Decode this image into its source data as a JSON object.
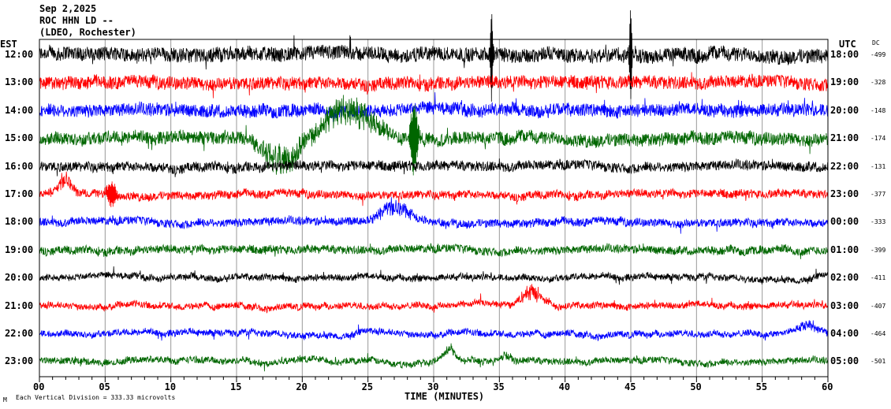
{
  "chart_data": {
    "type": "line",
    "title_lines": [
      "Sep 2,2025",
      "ROC HHN LD --",
      "(LDEO, Rochester)"
    ],
    "left_axis_label": "EST",
    "right_axis_label": "UTC",
    "dc_label": "DC",
    "xlabel": "TIME (MINUTES)",
    "xlim": [
      0,
      60
    ],
    "x_ticks": [
      "00",
      "05",
      "10",
      "15",
      "20",
      "25",
      "30",
      "35",
      "40",
      "45",
      "50",
      "55",
      "60"
    ],
    "footnote": "Each Vertical Division =  333.33 microvolts",
    "footnote_mark": "M",
    "rows": [
      {
        "est": "12:00",
        "utc": "18:00",
        "dc": "-499",
        "color": "#000000",
        "noise": 9
      },
      {
        "est": "13:00",
        "utc": "19:00",
        "dc": "-328",
        "color": "#ff0000",
        "noise": 8
      },
      {
        "est": "14:00",
        "utc": "20:00",
        "dc": "-148",
        "color": "#0000ff",
        "noise": 8
      },
      {
        "est": "15:00",
        "utc": "21:00",
        "dc": "-174",
        "color": "#006600",
        "noise": 8
      },
      {
        "est": "16:00",
        "utc": "22:00",
        "dc": "-131",
        "color": "#000000",
        "noise": 6
      },
      {
        "est": "17:00",
        "utc": "23:00",
        "dc": "-377",
        "color": "#ff0000",
        "noise": 5
      },
      {
        "est": "18:00",
        "utc": "00:00",
        "dc": "-333",
        "color": "#0000ff",
        "noise": 5
      },
      {
        "est": "19:00",
        "utc": "01:00",
        "dc": "-399",
        "color": "#006600",
        "noise": 5
      },
      {
        "est": "20:00",
        "utc": "02:00",
        "dc": "-411",
        "color": "#000000",
        "noise": 4
      },
      {
        "est": "21:00",
        "utc": "03:00",
        "dc": "-407",
        "color": "#ff0000",
        "noise": 4
      },
      {
        "est": "22:00",
        "utc": "04:00",
        "dc": "-464",
        "color": "#0000ff",
        "noise": 4
      },
      {
        "est": "23:00",
        "utc": "05:00",
        "dc": "-501",
        "color": "#006600",
        "noise": 4
      }
    ],
    "events": [
      {
        "row": 0,
        "minute": 34.4,
        "amp": 55,
        "width": 0.1
      },
      {
        "row": 0,
        "minute": 45.0,
        "amp": 52,
        "width": 0.1
      },
      {
        "row": 3,
        "minute": 18.5,
        "amp": -30,
        "width": 2.0
      },
      {
        "row": 3,
        "minute": 23.5,
        "amp": 35,
        "width": 2.5
      },
      {
        "row": 3,
        "minute": 28.5,
        "amp": 40,
        "width": 0.3
      },
      {
        "row": 5,
        "minute": 2.0,
        "amp": 18,
        "width": 0.6
      },
      {
        "row": 5,
        "minute": 5.5,
        "amp": 14,
        "width": 0.4
      },
      {
        "row": 6,
        "minute": 27.0,
        "amp": 18,
        "width": 1.5
      },
      {
        "row": 9,
        "minute": 37.5,
        "amp": 18,
        "width": 1.0
      },
      {
        "row": 10,
        "minute": 58.5,
        "amp": 10,
        "width": 1.0
      },
      {
        "row": 11,
        "minute": 31.2,
        "amp": 14,
        "width": 0.6
      },
      {
        "row": 11,
        "minute": 35.5,
        "amp": 8,
        "width": 0.6
      }
    ]
  }
}
